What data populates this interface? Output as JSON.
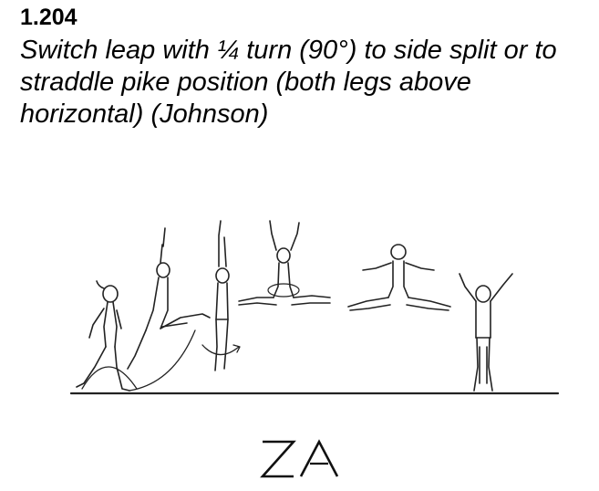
{
  "element": {
    "code": "1.204",
    "description": "Switch leap with ¼  turn (90°) to side split or to straddle pike position (both legs above horizontal) (Johnson)",
    "value": "ZA"
  },
  "illustration": {
    "icon": "gymnast-leap-sequence-drawing"
  }
}
